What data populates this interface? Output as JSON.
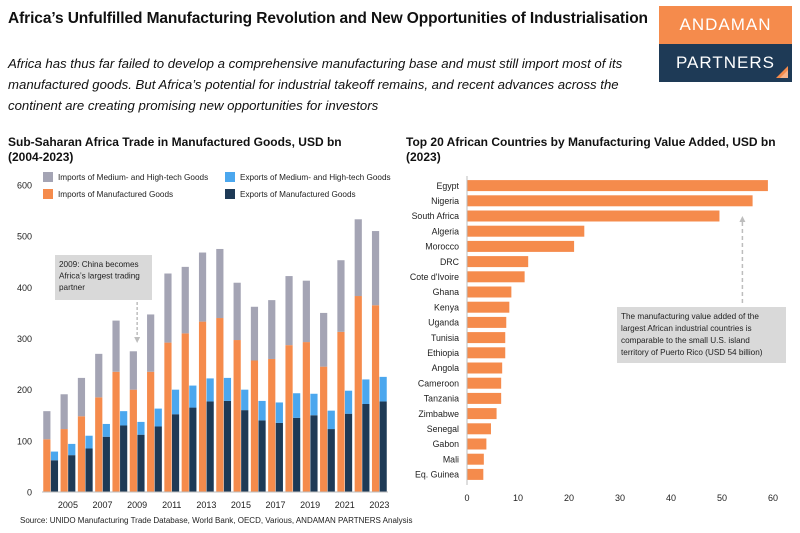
{
  "header": {
    "title": "Africa’s Unfulfilled Manufacturing Revolution and New Opportunities of Industrialisation",
    "subtitle": "Africa has thus far failed to develop a comprehensive manufacturing base and must still import most of its manufactured goods. But Africa’s potential for industrial takeoff remains, and recent advances across the continent are creating promising new opportunities for investors"
  },
  "logo": {
    "line1": "ANDAMAN",
    "line2": "PARTNERS",
    "colors": {
      "top": "#f58b4c",
      "bottom": "#1e3a56"
    }
  },
  "source": "Source: UNIDO Manufacturing Trade Database, World Bank, OECD, Various, ANDAMAN PARTNERS Analysis",
  "chart_data": [
    {
      "type": "bar",
      "title": "Sub-Saharan Africa Trade in Manufactured Goods, USD bn (2004-2023)",
      "title_line1": "Sub-Saharan Africa Trade in Manufactured Goods, USD bn",
      "title_line2": "(2004-2023)",
      "categories": [
        "2004",
        "2005",
        "2006",
        "2007",
        "2008",
        "2009",
        "2010",
        "2011",
        "2012",
        "2013",
        "2014",
        "2015",
        "2016",
        "2017",
        "2018",
        "2019",
        "2020",
        "2021",
        "2022",
        "2023"
      ],
      "x_tick_labels": [
        "2005",
        "2007",
        "2009",
        "2011",
        "2013",
        "2015",
        "2017",
        "2019",
        "2021",
        "2023"
      ],
      "x_tick_years": [
        2005,
        2007,
        2009,
        2011,
        2013,
        2015,
        2017,
        2019,
        2021,
        2023
      ],
      "ylim": [
        0,
        600
      ],
      "yticks": [
        0,
        100,
        200,
        300,
        400,
        500,
        600
      ],
      "grid": false,
      "legend": "top",
      "series": [
        {
          "name": "Imports of Medium- and High-tech Goods",
          "color": "#a4a4b4",
          "stack": "imports",
          "values": [
            55,
            68,
            75,
            85,
            100,
            75,
            112,
            135,
            130,
            135,
            135,
            112,
            105,
            115,
            135,
            120,
            105,
            140,
            150,
            145
          ]
        },
        {
          "name": "Imports of Manufactured Goods",
          "color": "#f58b4c",
          "stack": "imports",
          "values": [
            103,
            123,
            148,
            185,
            235,
            200,
            235,
            292,
            310,
            333,
            340,
            297,
            257,
            260,
            287,
            293,
            245,
            313,
            383,
            365
          ]
        },
        {
          "name": "Exports of Medium- and High-tech Goods",
          "color": "#4ba7ee",
          "stack": "exports",
          "values": [
            17,
            22,
            25,
            25,
            28,
            25,
            35,
            48,
            43,
            45,
            45,
            40,
            38,
            40,
            48,
            42,
            36,
            45,
            48,
            48
          ]
        },
        {
          "name": "Exports of Manufactured Goods",
          "color": "#1e3a56",
          "stack": "exports",
          "values": [
            62,
            72,
            85,
            108,
            130,
            112,
            128,
            152,
            165,
            177,
            178,
            160,
            140,
            135,
            145,
            150,
            123,
            153,
            172,
            177
          ]
        }
      ],
      "annotation": {
        "text_lines": [
          "2009: China becomes",
          "Africa’s largest trading",
          "partner"
        ],
        "year": "2009"
      }
    },
    {
      "type": "bar",
      "orientation": "horizontal",
      "title": "Top 20 African Countries by Manufacturing Value Added, USD bn (2023)",
      "title_line1": "Top 20 African Countries by Manufacturing Value Added, USD bn",
      "title_line2": "(2023)",
      "categories": [
        "Egypt",
        "Nigeria",
        "South Africa",
        "Algeria",
        "Morocco",
        "DRC",
        "Cote d'Ivoire",
        "Ghana",
        "Kenya",
        "Uganda",
        "Tunisia",
        "Ethiopia",
        "Angola",
        "Cameroon",
        "Tanzania",
        "Zimbabwe",
        "Senegal",
        "Gabon",
        "Mali",
        "Eq. Guinea"
      ],
      "values": [
        59,
        56,
        49.5,
        23,
        21,
        12,
        11.3,
        8.7,
        8.3,
        7.7,
        7.5,
        7.5,
        6.9,
        6.7,
        6.7,
        5.8,
        4.7,
        3.8,
        3.3,
        3.2
      ],
      "color": "#f58b4c",
      "xlim": [
        0,
        60
      ],
      "xticks": [
        0,
        10,
        20,
        30,
        40,
        50,
        60
      ],
      "grid": false,
      "annotation": {
        "text_lines": [
          "The manufacturing value added of the",
          "largest African industrial countries is",
          "comparable to the small U.S. island",
          "territory of Puerto Rico (USD 54 billion)"
        ],
        "value": 54
      }
    }
  ]
}
